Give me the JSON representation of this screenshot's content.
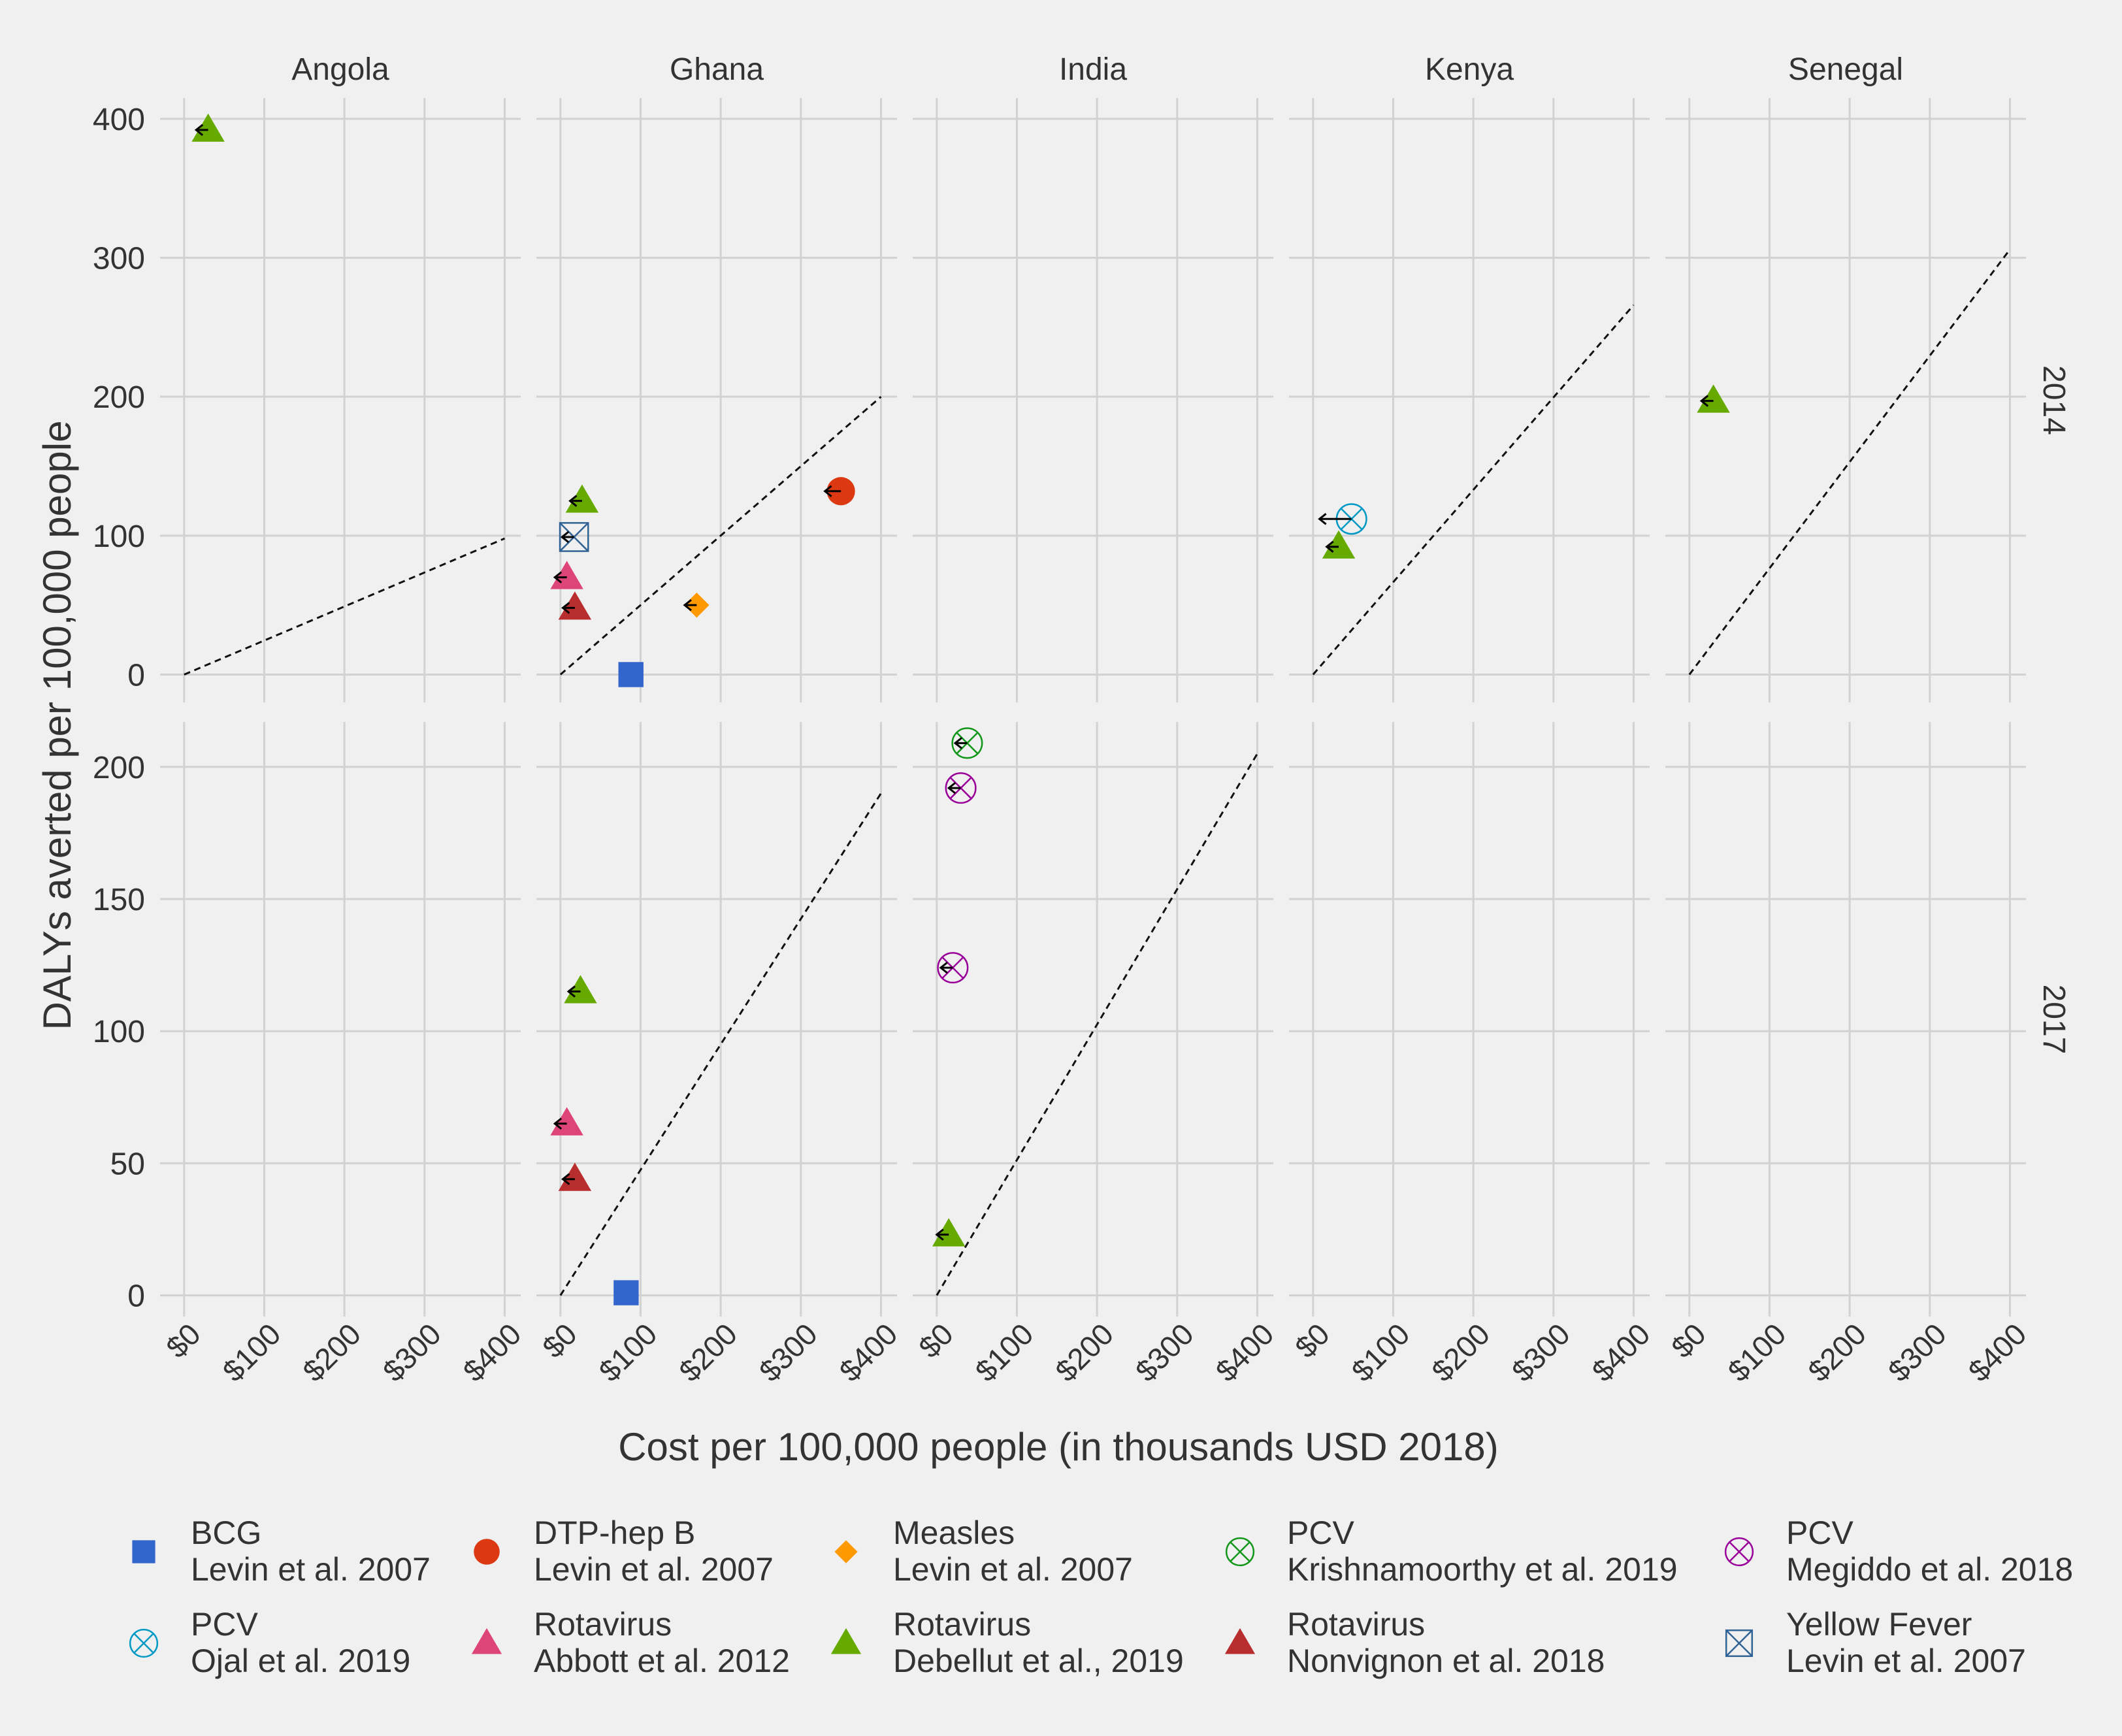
{
  "chart_data": {
    "type": "scatter",
    "xlabel": "Cost per 100,000 people (in thousands USD 2018)",
    "ylabel": "DALYs averted per 100,000 people",
    "facet_columns": [
      "Angola",
      "Ghana",
      "India",
      "Kenya",
      "Senegal"
    ],
    "facet_rows": [
      "2014",
      "2017"
    ],
    "x_ticks": [
      "$0",
      "$100",
      "$200",
      "$300",
      "$400"
    ],
    "x_tick_values": [
      0,
      100,
      200,
      300,
      400
    ],
    "xlim": [
      -30,
      420
    ],
    "rows": [
      {
        "name": "2014",
        "ylim": [
          -20,
          415
        ],
        "y_ticks": [
          0,
          100,
          200,
          300,
          400
        ]
      },
      {
        "name": "2017",
        "ylim": [
          -8,
          217
        ],
        "y_ticks": [
          0,
          50,
          100,
          150,
          200
        ]
      }
    ],
    "grid": true,
    "legend_position": "bottom",
    "series": [
      {
        "key": "bcg",
        "name": "BCG",
        "source": "Levin et al. 2007",
        "shape": "square",
        "color": "#3366cc"
      },
      {
        "key": "dtp",
        "name": "DTP-hep B",
        "source": "Levin et al. 2007",
        "shape": "circle",
        "color": "#dc3912"
      },
      {
        "key": "measles",
        "name": "Measles",
        "source": "Levin et al. 2007",
        "shape": "diamond",
        "color": "#ff9900"
      },
      {
        "key": "pcv_k",
        "name": "PCV",
        "source": "Krishnamoorthy et al. 2019",
        "shape": "circle-x",
        "color": "#109618"
      },
      {
        "key": "pcv_m",
        "name": "PCV",
        "source": "Megiddo et al. 2018",
        "shape": "circle-x",
        "color": "#990099"
      },
      {
        "key": "pcv_o",
        "name": "PCV",
        "source": "Ojal et al. 2019",
        "shape": "circle-x",
        "color": "#0099c6"
      },
      {
        "key": "rota_a",
        "name": "Rotavirus",
        "source": "Abbott et al. 2012",
        "shape": "triangle",
        "color": "#dd4477"
      },
      {
        "key": "rota_d",
        "name": "Rotavirus",
        "source": "Debellut et al., 2019",
        "shape": "triangle",
        "color": "#66aa00"
      },
      {
        "key": "rota_n",
        "name": "Rotavirus",
        "source": "Nonvignon et al. 2018",
        "shape": "triangle",
        "color": "#b82e2e"
      },
      {
        "key": "yf",
        "name": "Yellow Fever",
        "source": "Levin et al. 2007",
        "shape": "square-x",
        "color": "#316395"
      }
    ],
    "threshold_lines": [
      {
        "country": "Angola",
        "year": "2014",
        "x": [
          0,
          400
        ],
        "y": [
          0,
          98
        ]
      },
      {
        "country": "Ghana",
        "year": "2014",
        "x": [
          0,
          400
        ],
        "y": [
          0,
          200
        ]
      },
      {
        "country": "Kenya",
        "year": "2014",
        "x": [
          0,
          400
        ],
        "y": [
          0,
          266
        ]
      },
      {
        "country": "Senegal",
        "year": "2014",
        "x": [
          0,
          400
        ],
        "y": [
          0,
          306
        ]
      },
      {
        "country": "Ghana",
        "year": "2017",
        "x": [
          0,
          400
        ],
        "y": [
          0,
          190
        ]
      },
      {
        "country": "India",
        "year": "2017",
        "x": [
          0,
          400
        ],
        "y": [
          0,
          205
        ]
      }
    ],
    "points": [
      {
        "country": "Angola",
        "year": "2014",
        "series": "rota_d",
        "x": 30,
        "y": 392,
        "arrow_dx": -15
      },
      {
        "country": "Ghana",
        "year": "2014",
        "series": "rota_d",
        "x": 27,
        "y": 125,
        "arrow_dx": -15
      },
      {
        "country": "Ghana",
        "year": "2014",
        "series": "yf",
        "x": 17,
        "y": 99,
        "arrow_dx": -15
      },
      {
        "country": "Ghana",
        "year": "2014",
        "series": "rota_a",
        "x": 8,
        "y": 70,
        "arrow_dx": -15
      },
      {
        "country": "Ghana",
        "year": "2014",
        "series": "rota_n",
        "x": 18,
        "y": 48,
        "arrow_dx": -15
      },
      {
        "country": "Ghana",
        "year": "2014",
        "series": "measles",
        "x": 170,
        "y": 50,
        "arrow_dx": -15
      },
      {
        "country": "Ghana",
        "year": "2014",
        "series": "dtp",
        "x": 350,
        "y": 132,
        "arrow_dx": -20
      },
      {
        "country": "Ghana",
        "year": "2014",
        "series": "bcg",
        "x": 88,
        "y": 0
      },
      {
        "country": "Kenya",
        "year": "2014",
        "series": "pcv_o",
        "x": 48,
        "y": 112,
        "arrow_dx": -40
      },
      {
        "country": "Kenya",
        "year": "2014",
        "series": "rota_d",
        "x": 32,
        "y": 92,
        "arrow_dx": -15
      },
      {
        "country": "Senegal",
        "year": "2014",
        "series": "rota_d",
        "x": 30,
        "y": 197,
        "arrow_dx": -15
      },
      {
        "country": "Ghana",
        "year": "2017",
        "series": "rota_d",
        "x": 25,
        "y": 115,
        "arrow_dx": -15
      },
      {
        "country": "Ghana",
        "year": "2017",
        "series": "rota_a",
        "x": 8,
        "y": 65,
        "arrow_dx": -15
      },
      {
        "country": "Ghana",
        "year": "2017",
        "series": "rota_n",
        "x": 18,
        "y": 44,
        "arrow_dx": -15
      },
      {
        "country": "Ghana",
        "year": "2017",
        "series": "bcg",
        "x": 82,
        "y": 1
      },
      {
        "country": "India",
        "year": "2017",
        "series": "pcv_k",
        "x": 38,
        "y": 209,
        "arrow_dx": -15
      },
      {
        "country": "India",
        "year": "2017",
        "series": "pcv_m",
        "x": 30,
        "y": 192,
        "arrow_dx": -15
      },
      {
        "country": "India",
        "year": "2017",
        "series": "pcv_m",
        "x": 20,
        "y": 124,
        "arrow_dx": -15
      },
      {
        "country": "India",
        "year": "2017",
        "series": "rota_d",
        "x": 15,
        "y": 23,
        "arrow_dx": -15
      }
    ]
  }
}
